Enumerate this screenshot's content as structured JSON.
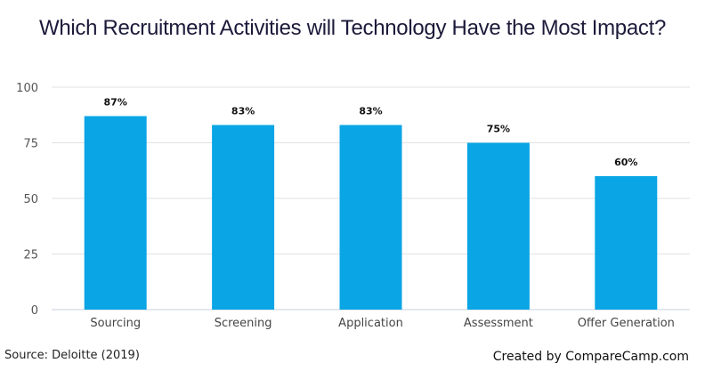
{
  "chart_data": {
    "type": "bar",
    "title": "Which Recruitment Activities will Technology Have the Most Impact?",
    "categories": [
      "Sourcing",
      "Screening",
      "Application",
      "Assessment",
      "Offer Generation"
    ],
    "values": [
      87,
      83,
      83,
      75,
      60
    ],
    "data_labels": [
      "87%",
      "83%",
      "83%",
      "75%",
      "60%"
    ],
    "xlabel": "",
    "ylabel": "",
    "ylim": [
      0,
      100
    ],
    "yticks": [
      0,
      25,
      50,
      75,
      100
    ],
    "grid": true,
    "legend": "none",
    "bar_color": "#0aa5e5"
  },
  "footer": {
    "source": "Source: Deloitte (2019)",
    "credit": "Created by CompareCamp.com"
  }
}
